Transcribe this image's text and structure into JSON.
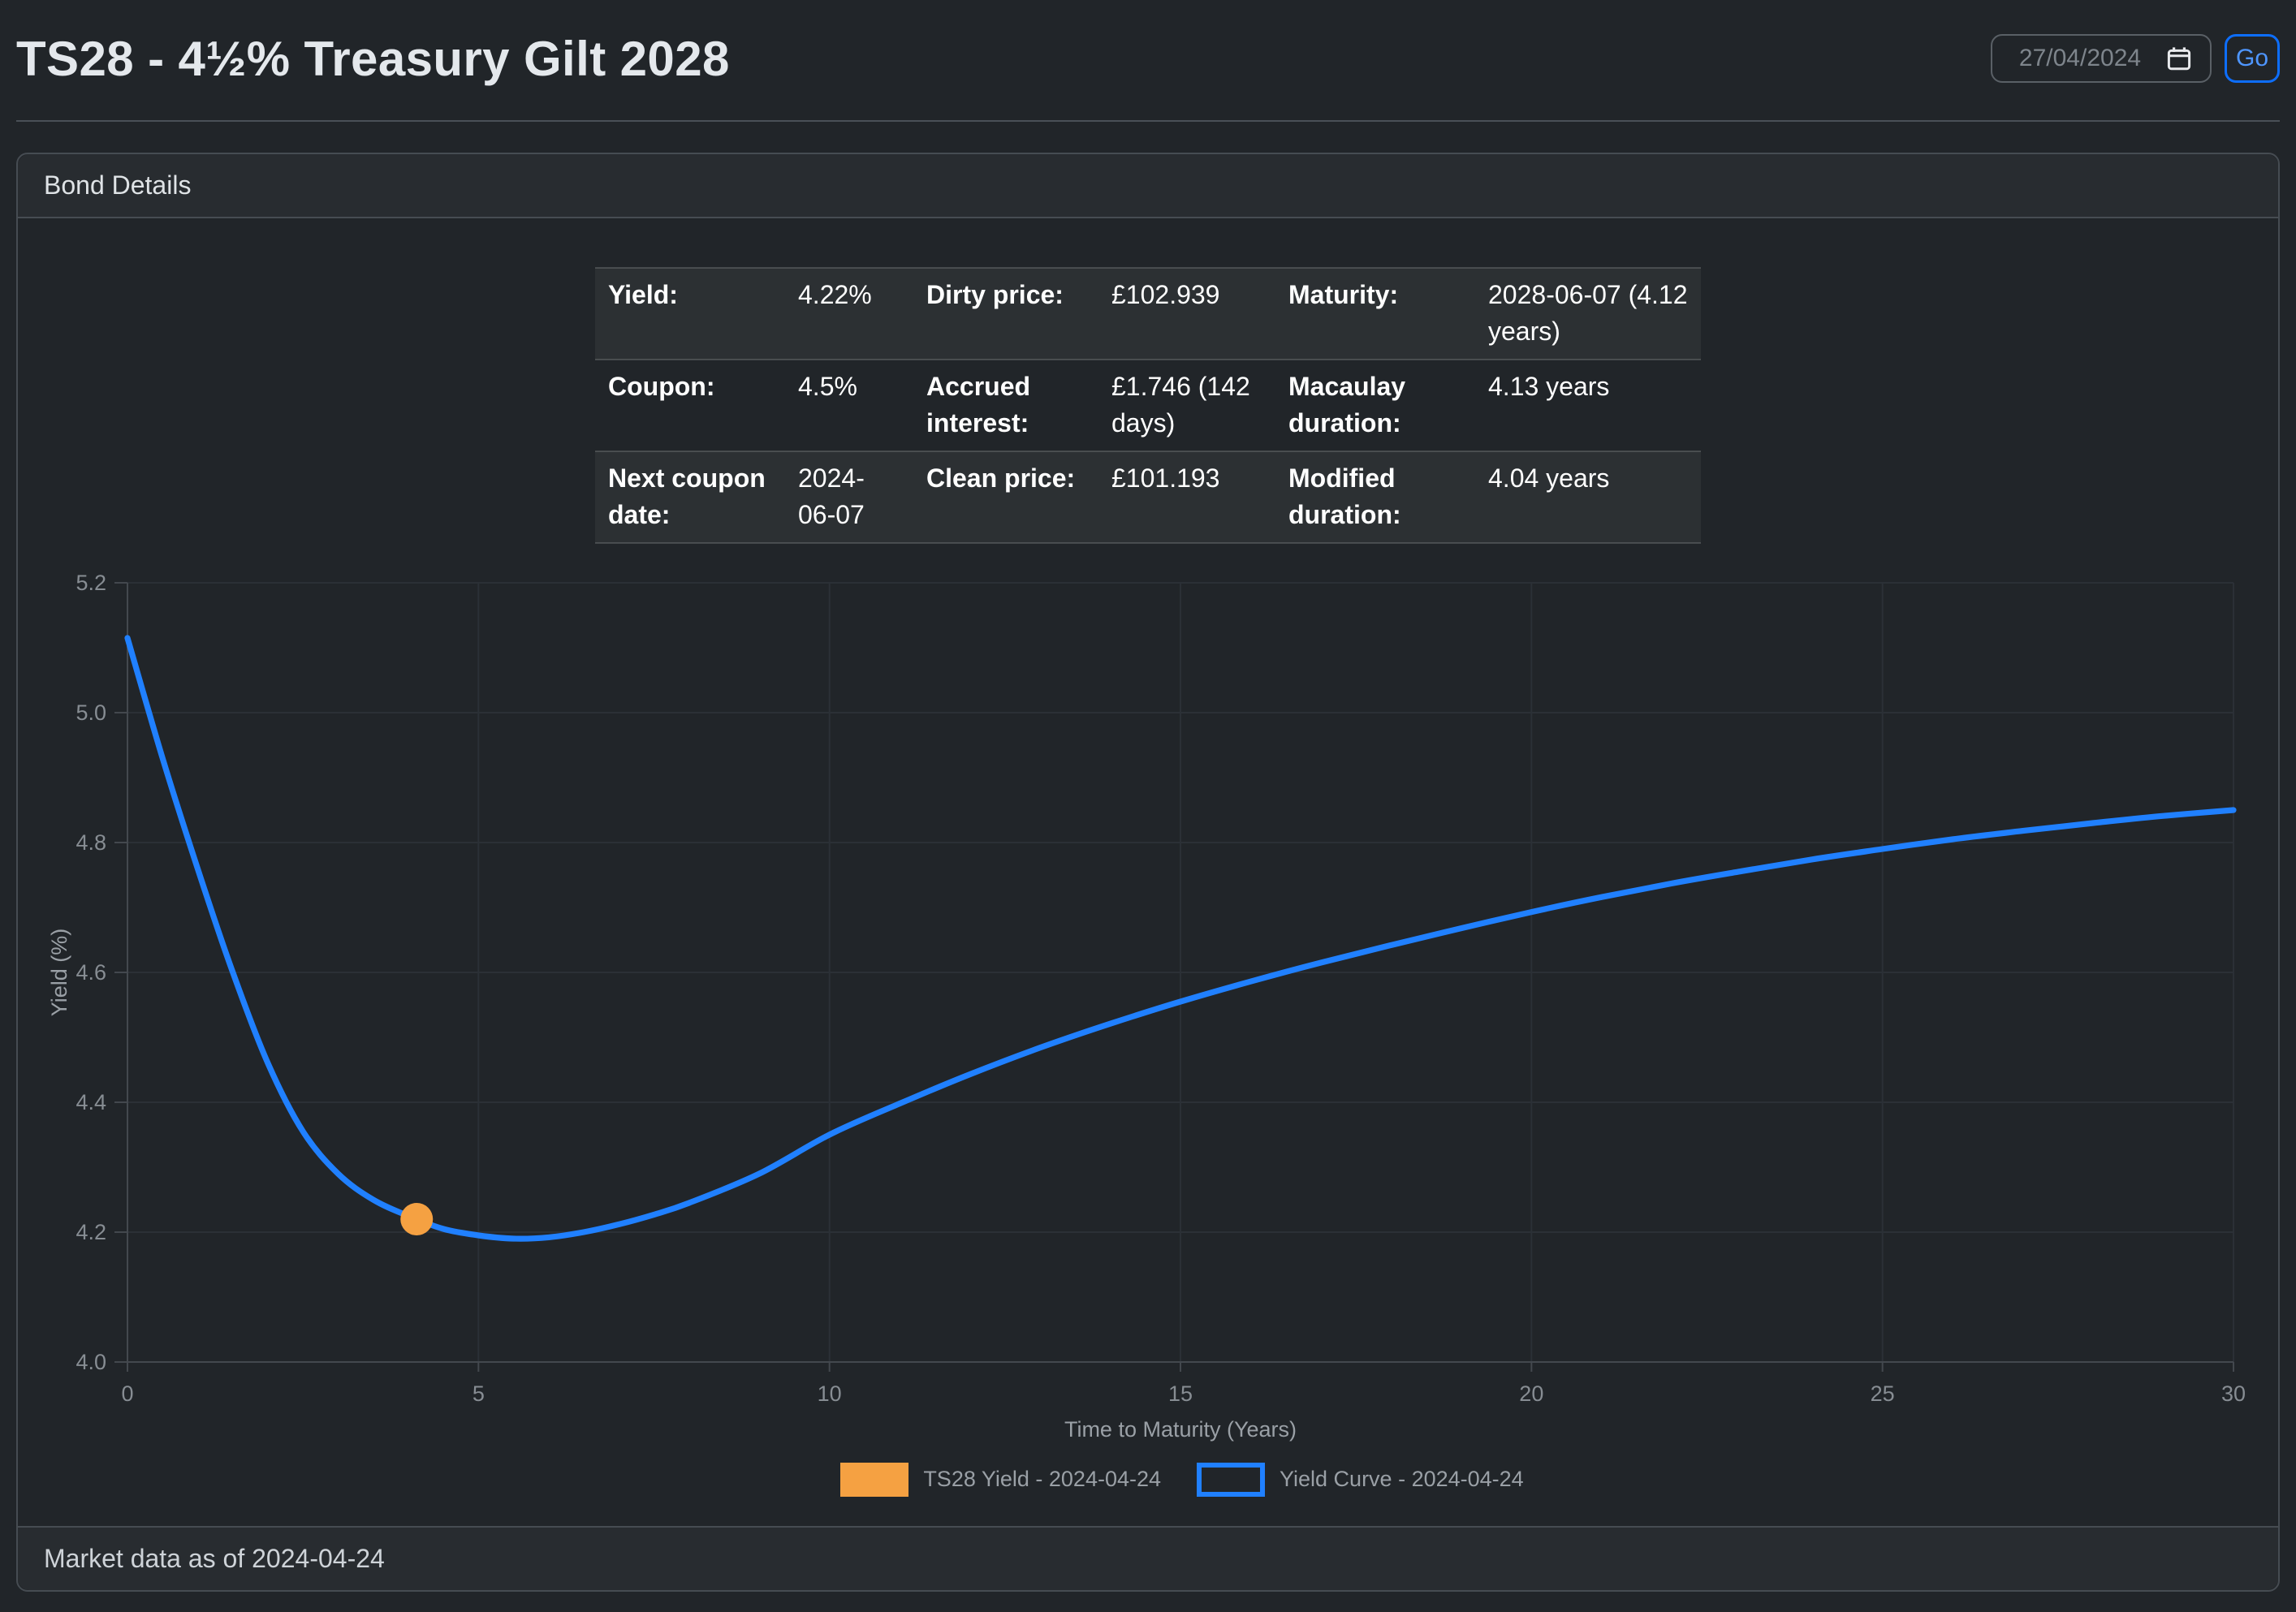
{
  "header": {
    "title": "TS28 - 4½% Treasury Gilt 2028",
    "date_input": {
      "value": "27/04/2024",
      "icon": "calendar-icon"
    },
    "go_button": "Go"
  },
  "card": {
    "header_title": "Bond Details",
    "footer_text": "Market data as of 2024-04-24"
  },
  "bond_table": {
    "rows": [
      {
        "cells": [
          {
            "label": "Yield:",
            "value": "4.22%"
          },
          {
            "label": "Dirty price:",
            "value": "£102.939"
          },
          {
            "label": "Maturity:",
            "value": "2028-06-07 (4.12 years)"
          }
        ]
      },
      {
        "cells": [
          {
            "label": "Coupon:",
            "value": "4.5%"
          },
          {
            "label": "Accrued interest:",
            "value": "£1.746 (142 days)"
          },
          {
            "label": "Macaulay duration:",
            "value": "4.13 years"
          }
        ]
      },
      {
        "cells": [
          {
            "label": "Next coupon date:",
            "value": "2024-06-07"
          },
          {
            "label": "Clean price:",
            "value": "£101.193"
          },
          {
            "label": "Modified duration:",
            "value": "4.04 years"
          }
        ]
      }
    ]
  },
  "chart_data": {
    "type": "line",
    "title": "",
    "xlabel": "Time to Maturity (Years)",
    "ylabel": "Yield (%)",
    "xlim": [
      0,
      30
    ],
    "ylim": [
      4.0,
      5.2
    ],
    "x_tick_labels": [
      "0",
      "5",
      "10",
      "15",
      "20",
      "25",
      "30"
    ],
    "y_tick_labels": [
      "4.0",
      "4.2",
      "4.4",
      "4.6",
      "4.8",
      "5.0",
      "5.2"
    ],
    "grid": true,
    "legend_position": "bottom",
    "series": [
      {
        "name": "TS28 Yield - 2024-04-24",
        "type": "scatter",
        "color": "#f5a142",
        "points": [
          {
            "x": 4.12,
            "y": 4.22
          }
        ],
        "point_radius": 10
      },
      {
        "name": "Yield Curve - 2024-04-24",
        "type": "line",
        "color": "#2080ff",
        "line_width": 3.6,
        "x": [
          0,
          0.5,
          1,
          1.5,
          2,
          2.5,
          3,
          3.5,
          4,
          4.5,
          5,
          5.5,
          6,
          6.5,
          7,
          7.5,
          8,
          9,
          10,
          11,
          12,
          13,
          14,
          15,
          16,
          17,
          18,
          19,
          20,
          21,
          22,
          23,
          24,
          25,
          26,
          27,
          28,
          29,
          30
        ],
        "y": [
          5.115,
          4.93,
          4.76,
          4.6,
          4.46,
          4.355,
          4.29,
          4.25,
          4.225,
          4.205,
          4.195,
          4.19,
          4.192,
          4.2,
          4.212,
          4.227,
          4.245,
          4.29,
          4.35,
          4.398,
          4.443,
          4.484,
          4.521,
          4.555,
          4.586,
          4.615,
          4.642,
          4.668,
          4.693,
          4.716,
          4.737,
          4.756,
          4.774,
          4.79,
          4.805,
          4.818,
          4.83,
          4.841,
          4.85
        ]
      }
    ],
    "style": {
      "grid_color": "#2b3036",
      "axis_color": "#43484e",
      "tick_text_color": "#878d93",
      "label_text_color": "#9aa0a6"
    }
  }
}
